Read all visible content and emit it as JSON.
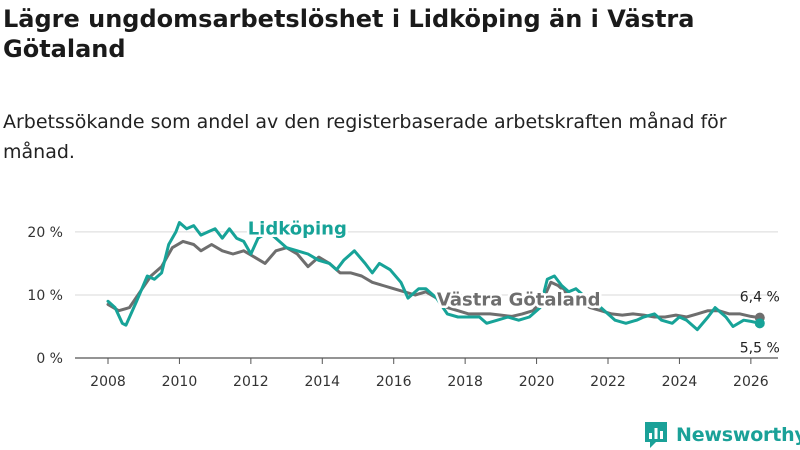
{
  "title": "Lägre ungdomsarbetslöshet i Lidköping än i Västra Götaland",
  "subtitle": "Arbetssökande som andel av den registerbaserade arbetskraften månad för månad.",
  "brand": "Newsworthy",
  "chart_data": {
    "type": "line",
    "title": "Lägre ungdomsarbetslöshet i Lidköping än i Västra Götaland",
    "xlabel": "",
    "ylabel": "",
    "xlim": [
      2007.5,
      2026.8
    ],
    "ylim": [
      0,
      23
    ],
    "y_ticks": [
      0,
      10,
      20
    ],
    "y_tick_labels": [
      "0 %",
      "10 %",
      "20 %"
    ],
    "x_ticks": [
      2008,
      2010,
      2012,
      2014,
      2016,
      2018,
      2020,
      2022,
      2024,
      2026
    ],
    "x_tick_labels": [
      "2008",
      "2010",
      "2012",
      "2014",
      "2016",
      "2018",
      "2020",
      "2022",
      "2024",
      "2026"
    ],
    "grid": true,
    "series": [
      {
        "name": "Västra Götaland",
        "color": "#6e6e6e",
        "end_label": "6,4 %",
        "points": [
          [
            2008.0,
            8.5
          ],
          [
            2008.3,
            7.5
          ],
          [
            2008.6,
            8.0
          ],
          [
            2008.9,
            10.5
          ],
          [
            2009.2,
            13.0
          ],
          [
            2009.5,
            14.5
          ],
          [
            2009.8,
            17.5
          ],
          [
            2010.1,
            18.5
          ],
          [
            2010.4,
            18.0
          ],
          [
            2010.6,
            17.0
          ],
          [
            2010.9,
            18.0
          ],
          [
            2011.2,
            17.0
          ],
          [
            2011.5,
            16.5
          ],
          [
            2011.8,
            17.0
          ],
          [
            2012.1,
            16.0
          ],
          [
            2012.4,
            15.0
          ],
          [
            2012.7,
            17.0
          ],
          [
            2013.0,
            17.5
          ],
          [
            2013.3,
            16.5
          ],
          [
            2013.6,
            14.5
          ],
          [
            2013.9,
            16.0
          ],
          [
            2014.2,
            15.0
          ],
          [
            2014.5,
            13.5
          ],
          [
            2014.8,
            13.5
          ],
          [
            2015.1,
            13.0
          ],
          [
            2015.4,
            12.0
          ],
          [
            2015.7,
            11.5
          ],
          [
            2016.0,
            11.0
          ],
          [
            2016.3,
            10.5
          ],
          [
            2016.6,
            10.0
          ],
          [
            2016.9,
            10.5
          ],
          [
            2017.2,
            9.5
          ],
          [
            2017.5,
            8.0
          ],
          [
            2017.8,
            7.5
          ],
          [
            2018.1,
            7.0
          ],
          [
            2018.4,
            7.0
          ],
          [
            2018.7,
            7.0
          ],
          [
            2019.0,
            6.8
          ],
          [
            2019.3,
            6.6
          ],
          [
            2019.6,
            7.0
          ],
          [
            2019.9,
            7.5
          ],
          [
            2020.2,
            9.5
          ],
          [
            2020.4,
            12.0
          ],
          [
            2020.6,
            11.5
          ],
          [
            2020.9,
            10.0
          ],
          [
            2021.2,
            9.0
          ],
          [
            2021.5,
            8.0
          ],
          [
            2021.8,
            7.5
          ],
          [
            2022.1,
            7.0
          ],
          [
            2022.4,
            6.8
          ],
          [
            2022.7,
            7.0
          ],
          [
            2023.0,
            6.8
          ],
          [
            2023.3,
            6.5
          ],
          [
            2023.6,
            6.5
          ],
          [
            2023.9,
            6.8
          ],
          [
            2024.2,
            6.5
          ],
          [
            2024.5,
            7.0
          ],
          [
            2024.8,
            7.5
          ],
          [
            2025.1,
            7.5
          ],
          [
            2025.4,
            7.0
          ],
          [
            2025.7,
            7.0
          ],
          [
            2026.0,
            6.6
          ],
          [
            2026.25,
            6.4
          ]
        ]
      },
      {
        "name": "Lidköping",
        "color": "#17a398",
        "end_label": "5,5 %",
        "points": [
          [
            2008.0,
            9.0
          ],
          [
            2008.2,
            8.0
          ],
          [
            2008.4,
            5.5
          ],
          [
            2008.5,
            5.2
          ],
          [
            2008.8,
            9.0
          ],
          [
            2009.1,
            13.0
          ],
          [
            2009.3,
            12.5
          ],
          [
            2009.5,
            13.5
          ],
          [
            2009.7,
            18.0
          ],
          [
            2009.9,
            20.0
          ],
          [
            2010.0,
            21.5
          ],
          [
            2010.2,
            20.5
          ],
          [
            2010.4,
            21.0
          ],
          [
            2010.6,
            19.5
          ],
          [
            2010.8,
            20.0
          ],
          [
            2011.0,
            20.5
          ],
          [
            2011.2,
            19.0
          ],
          [
            2011.4,
            20.5
          ],
          [
            2011.6,
            19.0
          ],
          [
            2011.8,
            18.5
          ],
          [
            2012.0,
            16.5
          ],
          [
            2012.2,
            19.0
          ],
          [
            2012.5,
            20.0
          ],
          [
            2012.7,
            19.0
          ],
          [
            2013.0,
            17.5
          ],
          [
            2013.3,
            17.0
          ],
          [
            2013.6,
            16.5
          ],
          [
            2013.9,
            15.5
          ],
          [
            2014.2,
            15.0
          ],
          [
            2014.4,
            14.0
          ],
          [
            2014.6,
            15.5
          ],
          [
            2014.9,
            17.0
          ],
          [
            2015.2,
            15.0
          ],
          [
            2015.4,
            13.5
          ],
          [
            2015.6,
            15.0
          ],
          [
            2015.9,
            14.0
          ],
          [
            2016.2,
            12.0
          ],
          [
            2016.4,
            9.5
          ],
          [
            2016.7,
            11.0
          ],
          [
            2016.9,
            11.0
          ],
          [
            2017.2,
            9.5
          ],
          [
            2017.5,
            7.0
          ],
          [
            2017.8,
            6.5
          ],
          [
            2018.1,
            6.5
          ],
          [
            2018.4,
            6.5
          ],
          [
            2018.6,
            5.5
          ],
          [
            2018.9,
            6.0
          ],
          [
            2019.2,
            6.5
          ],
          [
            2019.5,
            6.0
          ],
          [
            2019.8,
            6.5
          ],
          [
            2020.1,
            8.0
          ],
          [
            2020.3,
            12.5
          ],
          [
            2020.5,
            13.0
          ],
          [
            2020.7,
            11.5
          ],
          [
            2020.9,
            10.5
          ],
          [
            2021.1,
            11.0
          ],
          [
            2021.4,
            9.5
          ],
          [
            2021.7,
            8.5
          ],
          [
            2021.9,
            7.5
          ],
          [
            2022.2,
            6.0
          ],
          [
            2022.5,
            5.5
          ],
          [
            2022.8,
            6.0
          ],
          [
            2023.0,
            6.5
          ],
          [
            2023.3,
            7.0
          ],
          [
            2023.5,
            6.0
          ],
          [
            2023.8,
            5.5
          ],
          [
            2024.0,
            6.5
          ],
          [
            2024.2,
            6.0
          ],
          [
            2024.5,
            4.5
          ],
          [
            2024.8,
            6.5
          ],
          [
            2025.0,
            8.0
          ],
          [
            2025.3,
            6.5
          ],
          [
            2025.5,
            5.0
          ],
          [
            2025.8,
            6.0
          ],
          [
            2026.0,
            5.8
          ],
          [
            2026.25,
            5.5
          ]
        ]
      }
    ],
    "annotations": [
      {
        "text": "Lidköping",
        "series": "Lidköping",
        "x": 2013.3,
        "y": 19.6
      },
      {
        "text": "Västra Götaland",
        "series": "Västra Götaland",
        "x": 2019.5,
        "y": 8.3
      }
    ]
  }
}
